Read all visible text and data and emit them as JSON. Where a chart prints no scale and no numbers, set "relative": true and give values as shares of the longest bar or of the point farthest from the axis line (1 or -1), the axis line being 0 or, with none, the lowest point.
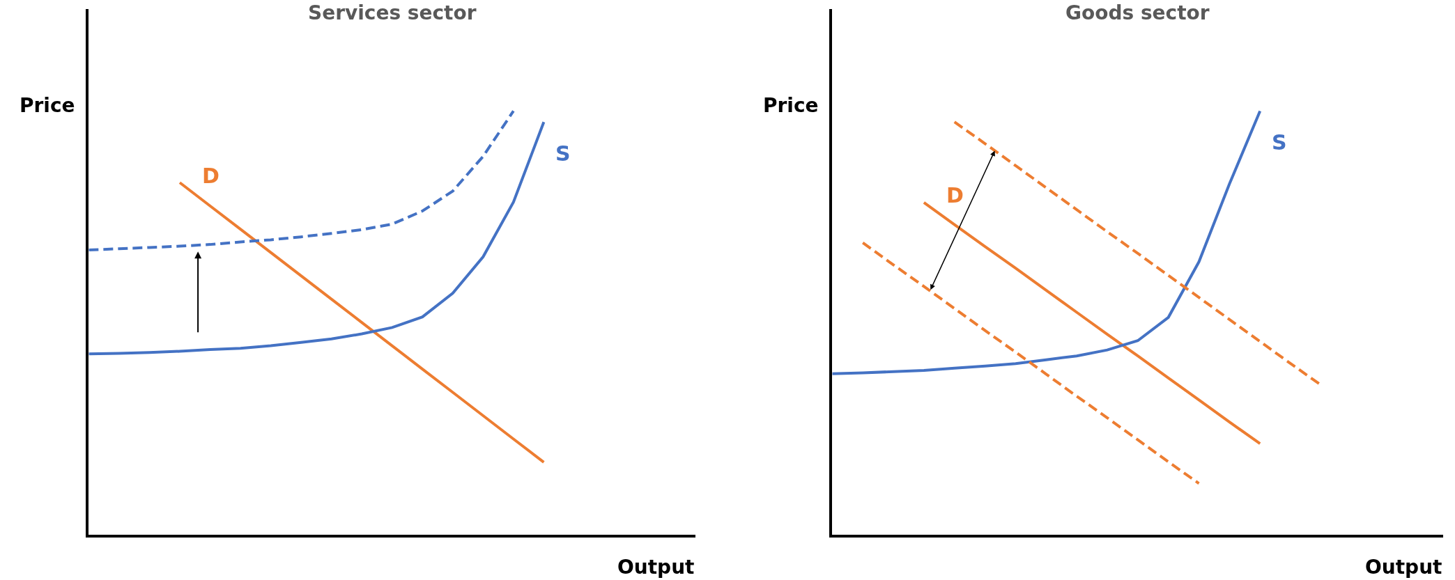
{
  "chart_data": [
    {
      "type": "line",
      "relative": true,
      "title": "Services sector",
      "xlabel": "Output",
      "ylabel": "Price",
      "categories": [
        null,
        null,
        null,
        null,
        null,
        null,
        null,
        null,
        null,
        null,
        null,
        null,
        null,
        null,
        null,
        null,
        null,
        null,
        null,
        null,
        null
      ],
      "series": [
        {
          "name": "D",
          "color": "#ed7d31",
          "values": [
            null,
            null,
            null,
            0.831,
            0.776,
            0.721,
            0.666,
            0.611,
            0.556,
            0.501,
            0.446,
            0.391,
            0.336,
            0.281,
            0.226,
            0.171,
            null,
            null,
            null,
            null,
            null
          ]
        },
        {
          "name": "S",
          "color": "#4472c4",
          "values": [
            0.427,
            0.428,
            0.43,
            0.433,
            0.437,
            0.44,
            0.446,
            0.454,
            0.462,
            0.474,
            0.489,
            0.514,
            0.57,
            0.656,
            0.785,
            0.974,
            null,
            null,
            null,
            null,
            null
          ]
        },
        {
          "color": "#4472c4",
          "line_style": "dashed",
          "values": [
            0.672,
            0.675,
            0.678,
            0.681,
            0.685,
            0.691,
            0.696,
            0.703,
            0.711,
            0.72,
            0.733,
            0.764,
            0.811,
            0.893,
            1.0,
            null,
            null,
            null,
            null,
            null,
            null
          ]
        }
      ]
    },
    {
      "type": "line",
      "relative": true,
      "title": "Goods sector",
      "xlabel": "Output",
      "ylabel": "Price",
      "categories": [
        null,
        null,
        null,
        null,
        null,
        null,
        null,
        null,
        null,
        null,
        null,
        null,
        null,
        null,
        null,
        null,
        null,
        null,
        null,
        null,
        null
      ],
      "series": [
        {
          "name": "D",
          "color": "#ed7d31",
          "values": [
            null,
            null,
            null,
            0.784,
            0.732,
            0.68,
            0.629,
            0.577,
            0.525,
            0.473,
            0.422,
            0.37,
            0.318,
            0.266,
            0.215,
            null,
            null,
            null,
            null,
            null,
            null
          ]
        },
        {
          "name": "S",
          "color": "#4472c4",
          "values": [
            0.38,
            0.382,
            0.385,
            0.388,
            0.393,
            0.398,
            0.404,
            0.413,
            0.422,
            0.436,
            0.458,
            0.513,
            0.644,
            0.828,
            1.0,
            null,
            null,
            null,
            null,
            null,
            null
          ]
        },
        {
          "color": "#ed7d31",
          "line_style": "dashed",
          "values": [
            null,
            null,
            null,
            null,
            0.974,
            0.923,
            0.871,
            0.819,
            0.767,
            0.715,
            0.664,
            0.612,
            0.56,
            0.508,
            0.456,
            0.404,
            0.353,
            null,
            null,
            null,
            null
          ]
        },
        {
          "color": "#ed7d31",
          "line_style": "dashed",
          "values": [
            null,
            0.689,
            0.637,
            0.586,
            0.534,
            0.482,
            0.431,
            0.379,
            0.327,
            0.276,
            0.224,
            0.172,
            0.121,
            null,
            null,
            null,
            null,
            null,
            null,
            null,
            null
          ]
        }
      ]
    }
  ]
}
